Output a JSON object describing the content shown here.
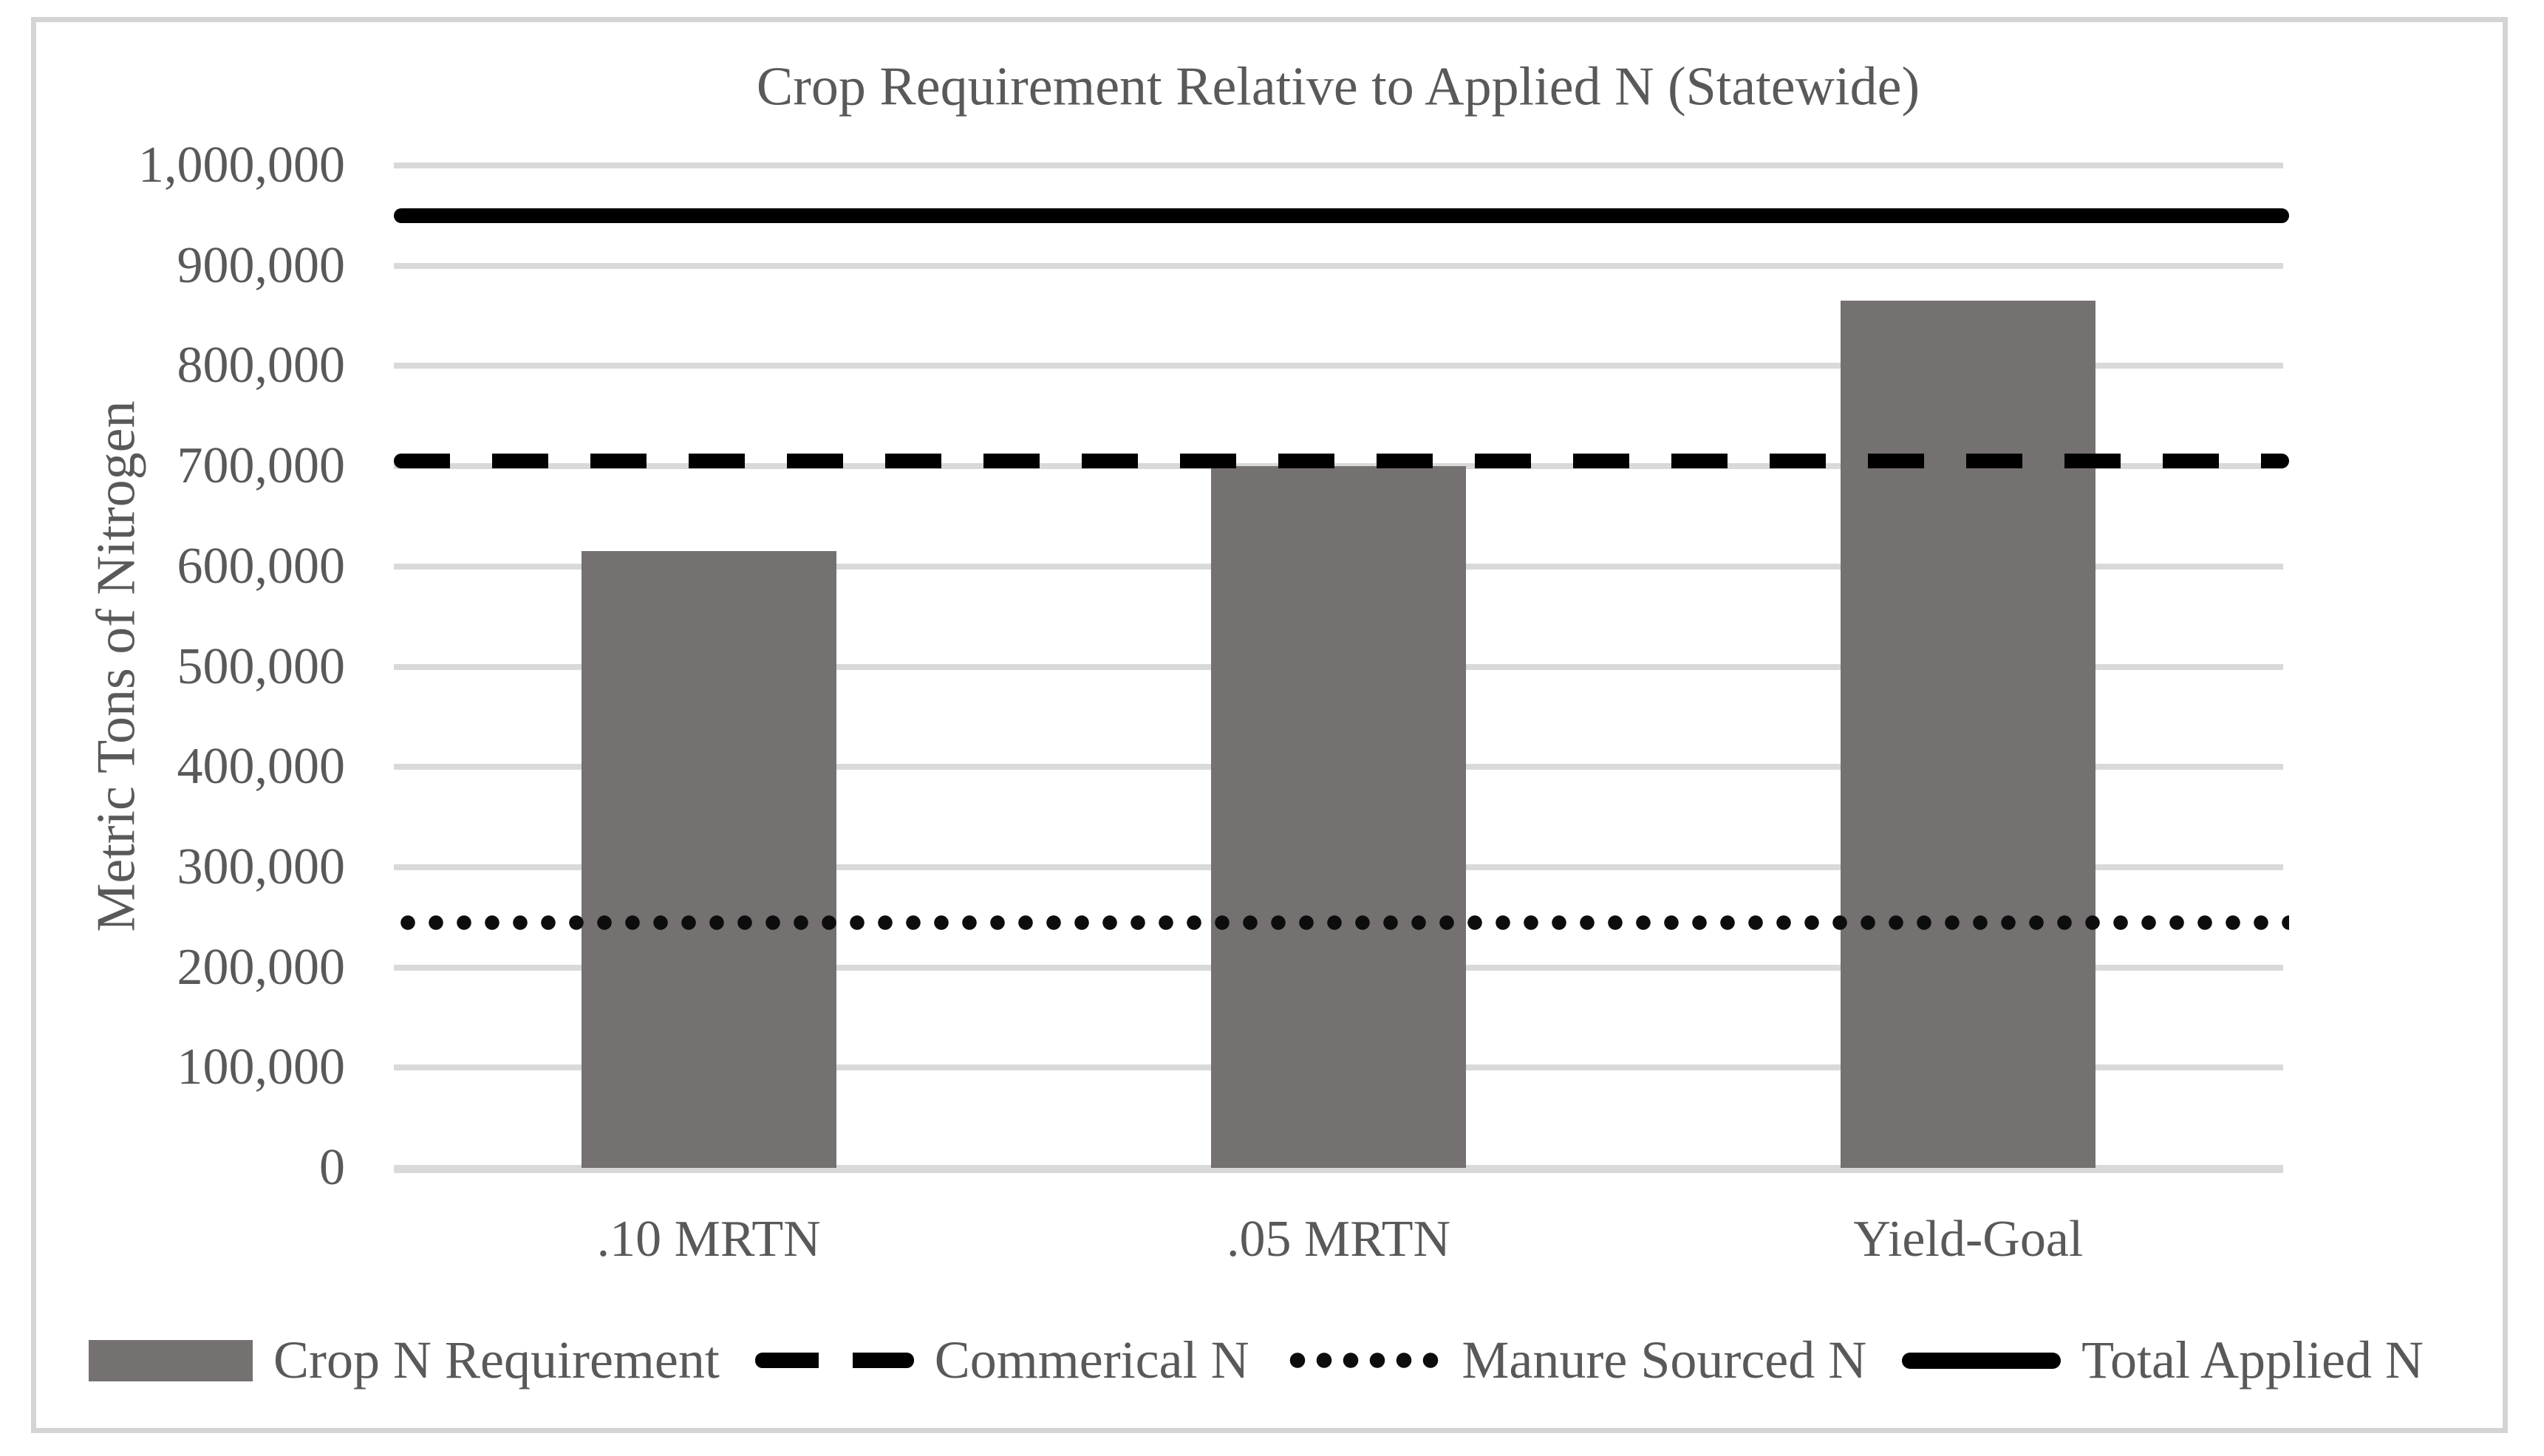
{
  "chart_data": {
    "type": "bar",
    "title": "Crop Requirement Relative to Applied N (Statewide)",
    "xlabel": "",
    "ylabel": "Metric Tons of Nitrogen",
    "categories": [
      ".10 MRTN",
      ".05 MRTN",
      "Yield-Goal"
    ],
    "series": [
      {
        "name": "Crop N Requirement",
        "kind": "bar",
        "color": "#757171",
        "values": [
          615000,
          700000,
          865000
        ]
      },
      {
        "name": "Commerical N",
        "kind": "dashed-line",
        "color": "#000000",
        "values": [
          705000,
          705000,
          705000
        ],
        "level": 705000
      },
      {
        "name": "Manure Sourced N",
        "kind": "dotted-line",
        "color": "#0d0d0d",
        "values": [
          245000,
          245000,
          245000
        ],
        "level": 245000
      },
      {
        "name": "Total Applied N",
        "kind": "solid-line",
        "color": "#000000",
        "values": [
          950000,
          950000,
          950000
        ],
        "level": 950000
      }
    ],
    "ylim": [
      0,
      1000000
    ],
    "ytick_step": 100000,
    "ytick_labels": [
      "0",
      "100,000",
      "200,000",
      "300,000",
      "400,000",
      "500,000",
      "600,000",
      "700,000",
      "800,000",
      "900,000",
      "1,000,000"
    ],
    "grid": true,
    "gridline_color": "#d9d9d9",
    "legend_position": "bottom",
    "legend_entries": [
      "Crop N Requirement",
      "Commerical N",
      "Manure Sourced N",
      "Total Applied N"
    ]
  },
  "colors": {
    "background": "#ffffff",
    "frame_border": "#d4d4d4",
    "text": "#595959",
    "bar": "#757171",
    "line": "#000000"
  }
}
